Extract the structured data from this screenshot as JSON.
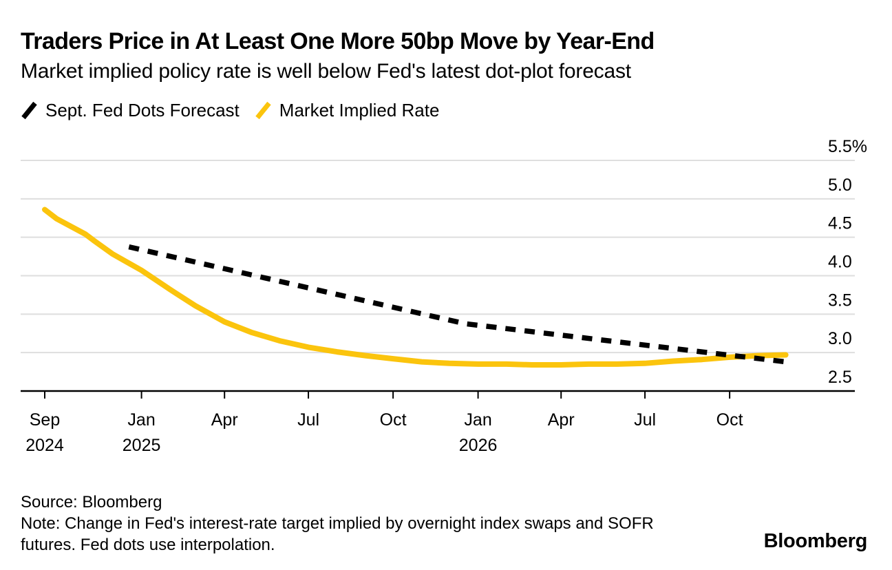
{
  "header": {
    "title": "Traders Price in At Least One More 50bp Move by Year-End",
    "subtitle": "Market implied policy rate is well below Fed's latest dot-plot forecast"
  },
  "legend": {
    "items": [
      {
        "label": "Sept. Fed Dots Forecast",
        "color": "#000000",
        "style": "dashed"
      },
      {
        "label": "Market Implied Rate",
        "color": "#FBC40D",
        "style": "solid"
      }
    ]
  },
  "footer": {
    "source": "Source: Bloomberg",
    "note": "Note: Change in Fed's interest-rate target implied by overnight index swaps and SOFR futures. Fed dots use interpolation.",
    "brand": "Bloomberg"
  },
  "chart_data": {
    "type": "line",
    "title": "Traders Price in At Least One More 50bp Move by Year-End",
    "subtitle": "Market implied policy rate is well below Fed's latest dot-plot forecast",
    "unit": "%",
    "ylim": [
      2.5,
      5.5
    ],
    "grid": "horizontal",
    "legend_position": "top-left",
    "y_axis_side": "right",
    "colors": {
      "accent_yellow": "#FBC40D",
      "line_black": "#000000",
      "gridline": "#DEDEDE"
    },
    "y_ticks": [
      {
        "v": 5.5,
        "label": "5.5%"
      },
      {
        "v": 5.0,
        "label": "5.0"
      },
      {
        "v": 4.5,
        "label": "4.5"
      },
      {
        "v": 4.0,
        "label": "4.0"
      },
      {
        "v": 3.5,
        "label": "3.5"
      },
      {
        "v": 3.0,
        "label": "3.0"
      },
      {
        "v": 2.5,
        "label": "2.5"
      }
    ],
    "x_ticks": [
      {
        "m": 0.0,
        "label": "Sep",
        "year": "2024"
      },
      {
        "m": 3.45,
        "label": "Jan",
        "year": "2025"
      },
      {
        "m": 6.41,
        "label": "Apr"
      },
      {
        "m": 9.4,
        "label": "Jul"
      },
      {
        "m": 12.42,
        "label": "Oct"
      },
      {
        "m": 15.45,
        "label": "Jan",
        "year": "2026"
      },
      {
        "m": 18.41,
        "label": "Apr"
      },
      {
        "m": 21.4,
        "label": "Jul"
      },
      {
        "m": 24.42,
        "label": "Oct"
      }
    ],
    "x_note": "m = months after 18 Sep 2024; points are [date, m, rate_percent]",
    "series": [
      {
        "name": "Market Implied Rate",
        "color": "#FBC40D",
        "style": "solid",
        "points": [
          [
            "2024-09-18",
            0.0,
            4.86
          ],
          [
            "2024-10-01",
            0.43,
            4.74
          ],
          [
            "2024-11-01",
            1.45,
            4.54
          ],
          [
            "2024-11-10",
            1.74,
            4.46
          ],
          [
            "2024-12-01",
            2.43,
            4.28
          ],
          [
            "2025-01-01",
            3.45,
            4.07
          ],
          [
            "2025-02-01",
            4.47,
            3.82
          ],
          [
            "2025-03-01",
            5.37,
            3.61
          ],
          [
            "2025-04-01",
            6.41,
            3.4
          ],
          [
            "2025-05-01",
            7.39,
            3.26
          ],
          [
            "2025-06-01",
            8.41,
            3.15
          ],
          [
            "2025-07-01",
            9.4,
            3.07
          ],
          [
            "2025-08-01",
            10.42,
            3.01
          ],
          [
            "2025-09-01",
            11.44,
            2.96
          ],
          [
            "2025-10-01",
            12.42,
            2.92
          ],
          [
            "2025-11-01",
            13.44,
            2.88
          ],
          [
            "2025-12-01",
            14.42,
            2.86
          ],
          [
            "2026-01-01",
            15.45,
            2.85
          ],
          [
            "2026-02-01",
            16.47,
            2.85
          ],
          [
            "2026-03-01",
            17.37,
            2.84
          ],
          [
            "2026-04-01",
            18.41,
            2.84
          ],
          [
            "2026-05-01",
            19.39,
            2.85
          ],
          [
            "2026-06-01",
            20.41,
            2.85
          ],
          [
            "2026-07-01",
            21.4,
            2.86
          ],
          [
            "2026-08-01",
            22.42,
            2.89
          ],
          [
            "2026-09-01",
            23.44,
            2.91
          ],
          [
            "2026-10-01",
            24.42,
            2.94
          ],
          [
            "2026-11-01",
            25.44,
            2.96
          ],
          [
            "2026-12-01",
            26.42,
            2.97
          ]
        ]
      },
      {
        "name": "Sept. Fed Dots Forecast",
        "color": "#000000",
        "style": "dashed",
        "points": [
          [
            "2024-12-18",
            3.0,
            4.375
          ],
          [
            "2025-12-17",
            15.0,
            3.375
          ],
          [
            "2026-12-01",
            26.42,
            2.88
          ]
        ]
      }
    ]
  }
}
